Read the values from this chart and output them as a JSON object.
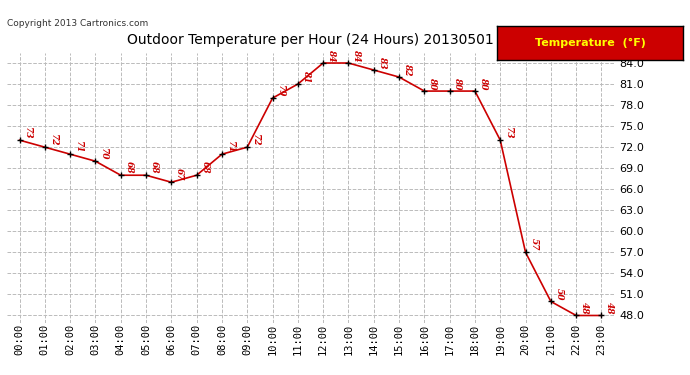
{
  "title": "Outdoor Temperature per Hour (24 Hours) 20130501",
  "copyright": "Copyright 2013 Cartronics.com",
  "legend_label": "Temperature  (°F)",
  "hours": [
    "00:00",
    "01:00",
    "02:00",
    "03:00",
    "04:00",
    "05:00",
    "06:00",
    "07:00",
    "08:00",
    "09:00",
    "10:00",
    "11:00",
    "12:00",
    "13:00",
    "14:00",
    "15:00",
    "16:00",
    "17:00",
    "18:00",
    "19:00",
    "20:00",
    "21:00",
    "22:00",
    "23:00"
  ],
  "temperatures": [
    73,
    72,
    71,
    70,
    68,
    68,
    67,
    68,
    71,
    72,
    79,
    81,
    84,
    84,
    83,
    82,
    80,
    80,
    80,
    73,
    57,
    50,
    48,
    48
  ],
  "ylim": [
    47.0,
    85.5
  ],
  "yticks": [
    48.0,
    51.0,
    54.0,
    57.0,
    60.0,
    63.0,
    66.0,
    69.0,
    72.0,
    75.0,
    78.0,
    81.0,
    84.0
  ],
  "line_color": "#cc0000",
  "marker_color": "#000000",
  "bg_color": "#ffffff",
  "grid_color": "#bbbbbb",
  "title_color": "#000000",
  "label_color": "#cc0000",
  "legend_bg": "#cc0000",
  "legend_text": "#ffff00"
}
